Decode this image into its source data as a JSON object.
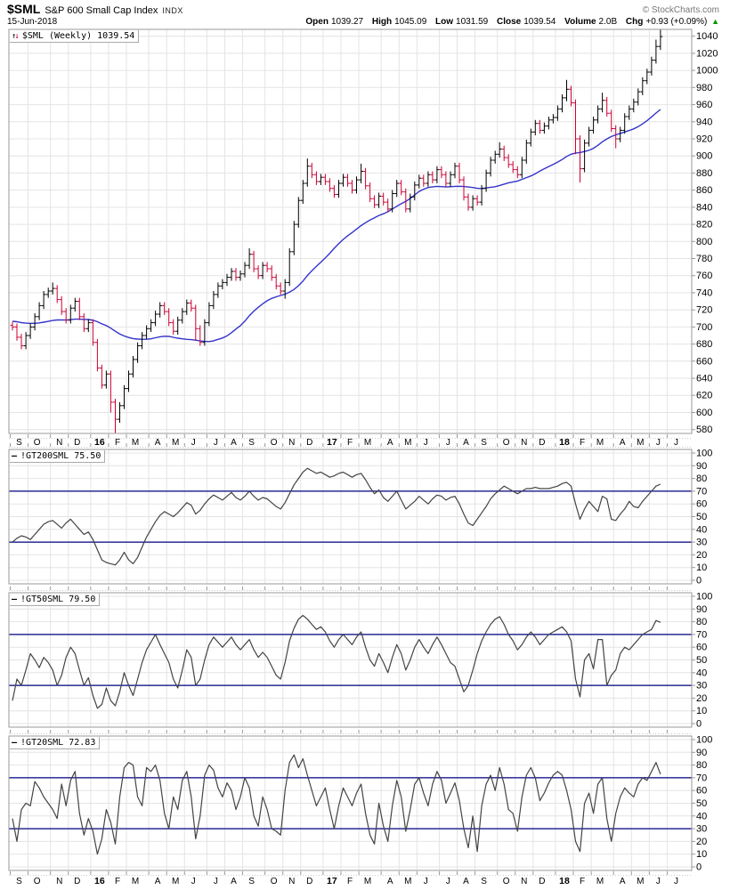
{
  "header": {
    "symbol": "$SML",
    "name": "S&P 600 Small Cap Index",
    "exchange": "INDX",
    "credit": "© StockCharts.com",
    "date": "15-Jun-2018",
    "quote": [
      {
        "label": "Open",
        "value": "1039.27"
      },
      {
        "label": "High",
        "value": "1045.09"
      },
      {
        "label": "Low",
        "value": "1031.59"
      },
      {
        "label": "Close",
        "value": "1039.54"
      },
      {
        "label": "Volume",
        "value": "2.0B"
      },
      {
        "label": "Chg",
        "value": "+0.93 (+0.09%)"
      }
    ],
    "change_direction": "up"
  },
  "main_legend": {
    "icon": "up-down-arrows",
    "text": "$SML (Weekly)",
    "value": "1039.54"
  },
  "colors": {
    "up_bar": "#000000",
    "down_bar": "#cc0033",
    "ma_line": "#3333cc",
    "threshold_line": "#000080",
    "indicator_line": "#444444",
    "grid": "#e4e4e4",
    "border": "#999999",
    "change_up": "#009900"
  },
  "chart_data": [
    {
      "type": "ohlc-with-ma",
      "title": "$SML (Weekly) 1039.54",
      "ylim": [
        575.5,
        1048
      ],
      "grid": "on",
      "y_ticks": [
        1040,
        1020,
        1000,
        980,
        960,
        940,
        920,
        900,
        880,
        860,
        840,
        820,
        800,
        780,
        760,
        740,
        720,
        700,
        680,
        660,
        640,
        620,
        600,
        580
      ],
      "x_labels": [
        "S",
        "O",
        "N",
        "D",
        "16",
        "F",
        "M",
        "A",
        "M",
        "J",
        "J",
        "A",
        "S",
        "O",
        "N",
        "D",
        "17",
        "F",
        "M",
        "A",
        "M",
        "J",
        "J",
        "A",
        "S",
        "O",
        "N",
        "D",
        "18",
        "F",
        "M",
        "A",
        "M",
        "J",
        "J"
      ],
      "x_label_start_weeks": [
        0,
        4,
        9,
        13,
        18,
        22,
        26,
        31,
        35,
        39,
        44,
        48,
        52,
        57,
        61,
        65,
        70,
        74,
        78,
        83,
        87,
        91,
        96,
        100,
        104,
        109,
        113,
        117,
        122,
        126,
        130,
        135,
        139,
        143,
        147
      ],
      "open_first": 702,
      "closes": [
        700,
        688,
        678,
        690,
        700,
        712,
        725,
        738,
        742,
        745,
        732,
        718,
        708,
        722,
        730,
        712,
        698,
        705,
        682,
        652,
        632,
        645,
        612,
        592,
        608,
        628,
        645,
        662,
        678,
        690,
        698,
        705,
        715,
        725,
        718,
        705,
        695,
        708,
        718,
        728,
        722,
        698,
        682,
        705,
        725,
        738,
        748,
        752,
        758,
        765,
        758,
        762,
        772,
        785,
        768,
        760,
        772,
        768,
        758,
        748,
        742,
        752,
        788,
        820,
        848,
        868,
        888,
        878,
        870,
        875,
        870,
        862,
        855,
        868,
        875,
        868,
        860,
        872,
        882,
        865,
        850,
        843,
        853,
        846,
        838,
        856,
        868,
        858,
        838,
        852,
        866,
        874,
        868,
        878,
        872,
        884,
        878,
        868,
        878,
        888,
        872,
        852,
        840,
        850,
        846,
        862,
        880,
        895,
        902,
        908,
        898,
        890,
        884,
        878,
        895,
        915,
        928,
        938,
        930,
        935,
        942,
        945,
        955,
        968,
        978,
        962,
        920,
        885,
        915,
        930,
        942,
        955,
        965,
        950,
        932,
        920,
        930,
        946,
        955,
        963,
        975,
        988,
        998,
        1012,
        1028,
        1039.54
      ],
      "hl_extra": {
        "9": [
          3,
          0
        ],
        "22": [
          0,
          8
        ],
        "23": [
          0,
          12
        ],
        "41": [
          0,
          10
        ],
        "53": [
          3,
          0
        ],
        "61": [
          0,
          5
        ],
        "66": [
          5,
          0
        ],
        "78": [
          5,
          0
        ],
        "109": [
          4,
          0
        ],
        "124": [
          7,
          0
        ],
        "126": [
          0,
          14
        ],
        "127": [
          0,
          12
        ],
        "132": [
          5,
          0
        ],
        "135": [
          0,
          7
        ],
        "144": [
          4,
          0
        ],
        "145": [
          4,
          0
        ]
      },
      "ma": {
        "window": 30,
        "prehistory": [
          705,
          706,
          707,
          708,
          709,
          710,
          711,
          712,
          713,
          714,
          715,
          714,
          713,
          712,
          711,
          710,
          709,
          708,
          707,
          706,
          705,
          704,
          703,
          702,
          701,
          700,
          699,
          698,
          697,
          696
        ]
      }
    },
    {
      "type": "line",
      "label": "!GT200SML",
      "value": "75.50",
      "ylim": [
        0,
        100
      ],
      "y_ticks": [
        100,
        90,
        80,
        70,
        60,
        50,
        40,
        30,
        20,
        10,
        0
      ],
      "thresholds": [
        70,
        30
      ],
      "values": [
        30,
        33,
        35,
        34,
        32,
        36,
        40,
        44,
        46,
        47,
        44,
        41,
        45,
        48,
        44,
        40,
        36,
        38,
        32,
        24,
        16,
        14,
        13,
        12,
        16,
        22,
        16,
        13,
        18,
        26,
        34,
        40,
        46,
        51,
        54,
        52,
        50,
        53,
        57,
        61,
        59,
        52,
        55,
        60,
        64,
        67,
        65,
        63,
        66,
        69,
        65,
        63,
        66,
        70,
        66,
        63,
        65,
        64,
        61,
        58,
        56,
        61,
        68,
        75,
        80,
        85,
        88,
        86,
        84,
        85,
        83,
        81,
        82,
        84,
        85,
        83,
        81,
        83,
        84,
        79,
        73,
        68,
        71,
        65,
        62,
        66,
        70,
        63,
        56,
        59,
        62,
        66,
        63,
        60,
        64,
        67,
        66,
        63,
        65,
        66,
        60,
        52,
        45,
        43,
        48,
        53,
        58,
        64,
        68,
        71,
        74,
        72,
        70,
        68,
        70,
        72,
        72,
        73,
        72,
        72,
        72,
        73,
        74,
        76,
        77,
        74,
        60,
        48,
        56,
        62,
        58,
        54,
        66,
        64,
        48,
        47,
        52,
        56,
        62,
        58,
        57,
        62,
        66,
        70,
        74,
        75.5
      ]
    },
    {
      "type": "line",
      "label": "!GT50SML",
      "value": "79.50",
      "ylim": [
        0,
        100
      ],
      "y_ticks": [
        100,
        90,
        80,
        70,
        60,
        50,
        40,
        30,
        20,
        10,
        0
      ],
      "thresholds": [
        70,
        30
      ],
      "values": [
        18,
        35,
        30,
        42,
        55,
        50,
        44,
        52,
        48,
        42,
        30,
        38,
        52,
        60,
        55,
        42,
        30,
        36,
        22,
        12,
        15,
        28,
        18,
        14,
        25,
        40,
        30,
        22,
        35,
        48,
        58,
        64,
        70,
        62,
        55,
        48,
        35,
        28,
        42,
        58,
        52,
        30,
        35,
        50,
        62,
        68,
        64,
        60,
        64,
        68,
        62,
        58,
        62,
        66,
        58,
        52,
        56,
        52,
        45,
        38,
        35,
        48,
        65,
        75,
        82,
        85,
        82,
        78,
        74,
        76,
        72,
        65,
        60,
        66,
        70,
        66,
        62,
        68,
        72,
        60,
        50,
        45,
        55,
        48,
        40,
        52,
        62,
        55,
        42,
        50,
        60,
        66,
        60,
        55,
        62,
        68,
        62,
        55,
        48,
        45,
        35,
        25,
        30,
        42,
        55,
        65,
        72,
        78,
        82,
        84,
        78,
        70,
        65,
        58,
        62,
        68,
        72,
        68,
        62,
        66,
        70,
        72,
        74,
        76,
        72,
        65,
        35,
        21,
        50,
        55,
        43,
        66,
        66,
        30,
        38,
        42,
        55,
        60,
        58,
        62,
        66,
        70,
        72,
        74,
        81,
        79.5
      ]
    },
    {
      "type": "line",
      "label": "!GT20SML",
      "value": "72.83",
      "ylim": [
        0,
        100
      ],
      "y_ticks": [
        100,
        90,
        80,
        70,
        60,
        50,
        40,
        30,
        20,
        10,
        0
      ],
      "thresholds": [
        70,
        30
      ],
      "values": [
        38,
        20,
        45,
        50,
        48,
        67,
        62,
        55,
        50,
        45,
        38,
        65,
        48,
        68,
        75,
        42,
        25,
        38,
        28,
        10,
        22,
        45,
        35,
        18,
        55,
        78,
        82,
        80,
        55,
        48,
        78,
        75,
        80,
        68,
        42,
        30,
        55,
        45,
        68,
        75,
        55,
        22,
        40,
        72,
        80,
        76,
        62,
        55,
        66,
        60,
        45,
        55,
        70,
        62,
        40,
        32,
        55,
        45,
        30,
        28,
        25,
        60,
        82,
        88,
        78,
        85,
        72,
        60,
        48,
        55,
        62,
        45,
        30,
        48,
        62,
        55,
        48,
        58,
        65,
        42,
        25,
        18,
        50,
        32,
        20,
        48,
        68,
        55,
        28,
        45,
        65,
        70,
        58,
        48,
        65,
        75,
        68,
        50,
        58,
        66,
        52,
        30,
        15,
        40,
        12,
        48,
        65,
        72,
        60,
        78,
        65,
        45,
        42,
        28,
        55,
        72,
        78,
        70,
        52,
        58,
        66,
        72,
        75,
        72,
        60,
        45,
        20,
        12,
        50,
        58,
        42,
        65,
        70,
        38,
        20,
        42,
        55,
        62,
        58,
        55,
        65,
        70,
        68,
        75,
        82,
        72.83
      ]
    }
  ]
}
